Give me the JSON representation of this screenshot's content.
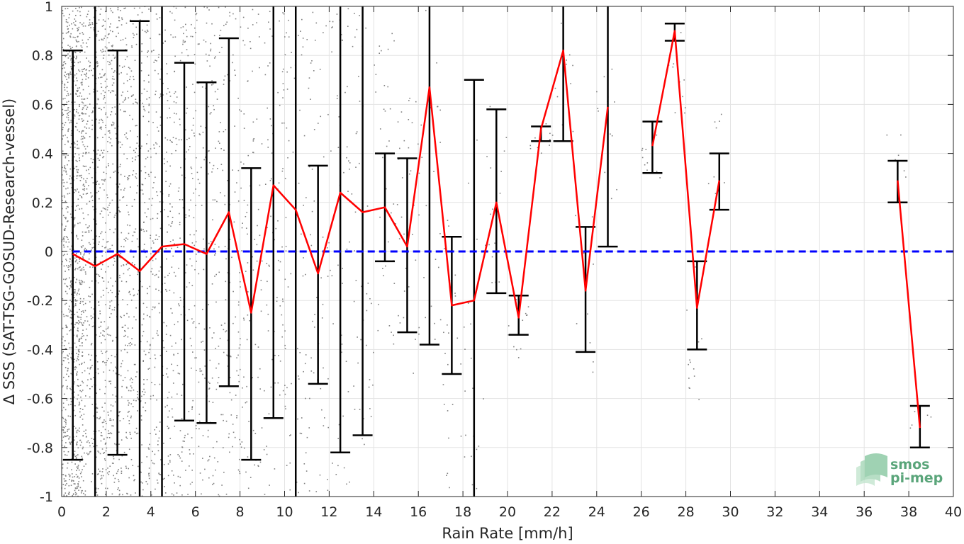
{
  "chart_data": {
    "type": "line",
    "xlabel": "Rain Rate [mm/h]",
    "ylabel": "Δ SSS (SAT-TSG-GOSUD-Research-vessel)",
    "xlim": [
      0,
      40
    ],
    "ylim": [
      -1,
      1
    ],
    "xticks": [
      0,
      2,
      4,
      6,
      8,
      10,
      12,
      14,
      16,
      18,
      20,
      22,
      24,
      26,
      28,
      30,
      32,
      34,
      36,
      38,
      40
    ],
    "yticks": [
      -1,
      -0.8,
      -0.6,
      -0.4,
      -0.2,
      0,
      0.2,
      0.4,
      0.6,
      0.8,
      1
    ],
    "ytick_labels": [
      "-1",
      "-0.8",
      "-0.6",
      "-0.4",
      "-0.2",
      "0",
      "0.2",
      "0.4",
      "0.6",
      "0.8",
      "1"
    ],
    "grid": true,
    "series": [
      {
        "kind": "mean-line",
        "color": "#ff0000",
        "segments": [
          [
            [
              0.5,
              -0.01
            ],
            [
              1.5,
              -0.06
            ],
            [
              2.5,
              -0.01
            ],
            [
              3.5,
              -0.08
            ],
            [
              4.5,
              0.02
            ],
            [
              5.5,
              0.03
            ],
            [
              6.5,
              -0.01
            ],
            [
              7.5,
              0.16
            ],
            [
              8.5,
              -0.25
            ],
            [
              9.5,
              0.27
            ],
            [
              10.5,
              0.17
            ],
            [
              11.5,
              -0.09
            ],
            [
              12.5,
              0.24
            ],
            [
              13.5,
              0.16
            ],
            [
              14.5,
              0.18
            ],
            [
              15.5,
              0.02
            ],
            [
              16.5,
              0.67
            ],
            [
              17.5,
              -0.22
            ],
            [
              18.5,
              -0.2
            ],
            [
              19.5,
              0.2
            ],
            [
              20.5,
              -0.27
            ],
            [
              21.5,
              0.5
            ],
            [
              22.5,
              0.82
            ],
            [
              23.5,
              -0.16
            ],
            [
              24.5,
              0.59
            ]
          ],
          [
            [
              26.5,
              0.43
            ],
            [
              27.5,
              0.9
            ],
            [
              28.5,
              -0.23
            ],
            [
              29.5,
              0.29
            ]
          ],
          [
            [
              37.5,
              0.29
            ],
            [
              38.5,
              -0.72
            ]
          ]
        ]
      },
      {
        "kind": "reference-line",
        "color": "#0000ff",
        "y": 0
      }
    ],
    "error_bars": [
      {
        "x": 0.5,
        "low": -0.85,
        "high": 0.82,
        "capped": true
      },
      {
        "x": 1.5,
        "low": -1.0,
        "high": 1.0,
        "capped": false
      },
      {
        "x": 2.5,
        "low": -0.83,
        "high": 0.82,
        "capped": true
      },
      {
        "x": 3.5,
        "low": -1.0,
        "high": 0.94,
        "capped": true
      },
      {
        "x": 4.5,
        "low": -1.0,
        "high": 1.0,
        "capped": false
      },
      {
        "x": 5.5,
        "low": -0.69,
        "high": 0.77,
        "capped": true
      },
      {
        "x": 6.5,
        "low": -0.7,
        "high": 0.69,
        "capped": true
      },
      {
        "x": 7.5,
        "low": -0.55,
        "high": 0.87,
        "capped": true
      },
      {
        "x": 8.5,
        "low": -0.85,
        "high": 0.34,
        "capped": true
      },
      {
        "x": 9.5,
        "low": -0.68,
        "high": 1.0,
        "capped": true
      },
      {
        "x": 10.5,
        "low": -1.0,
        "high": 1.0,
        "capped": false
      },
      {
        "x": 11.5,
        "low": -0.54,
        "high": 0.35,
        "capped": true
      },
      {
        "x": 12.5,
        "low": -0.82,
        "high": 1.0,
        "capped": true
      },
      {
        "x": 13.5,
        "low": -0.75,
        "high": 1.0,
        "capped": true
      },
      {
        "x": 14.5,
        "low": -0.04,
        "high": 0.4,
        "capped": true
      },
      {
        "x": 15.5,
        "low": -0.33,
        "high": 0.38,
        "capped": true
      },
      {
        "x": 16.5,
        "low": -0.38,
        "high": 1.0,
        "capped": true
      },
      {
        "x": 17.5,
        "low": -0.5,
        "high": 0.06,
        "capped": true
      },
      {
        "x": 18.5,
        "low": -1.0,
        "high": 0.7,
        "capped": true
      },
      {
        "x": 19.5,
        "low": -0.17,
        "high": 0.58,
        "capped": true
      },
      {
        "x": 20.5,
        "low": -0.34,
        "high": -0.18,
        "capped": true
      },
      {
        "x": 21.5,
        "low": 0.45,
        "high": 0.51,
        "capped": true
      },
      {
        "x": 22.5,
        "low": 0.45,
        "high": 1.0,
        "capped": true
      },
      {
        "x": 23.5,
        "low": -0.41,
        "high": 0.1,
        "capped": true
      },
      {
        "x": 24.5,
        "low": 0.02,
        "high": 1.0,
        "capped": true
      },
      {
        "x": 26.5,
        "low": 0.32,
        "high": 0.53,
        "capped": true
      },
      {
        "x": 27.5,
        "low": 0.86,
        "high": 0.93,
        "capped": true
      },
      {
        "x": 28.5,
        "low": -0.4,
        "high": -0.04,
        "capped": true
      },
      {
        "x": 29.5,
        "low": 0.17,
        "high": 0.4,
        "capped": true
      },
      {
        "x": 37.5,
        "low": 0.2,
        "high": 0.37,
        "capped": true
      },
      {
        "x": 38.5,
        "low": -0.8,
        "high": -0.63,
        "capped": true
      }
    ],
    "scatter": {
      "color": "#808080",
      "clusters": [
        {
          "x0": 0.0,
          "x1": 1.0,
          "y0": -1.0,
          "y1": 1.0,
          "n": 900
        },
        {
          "x0": 1.0,
          "x1": 2.0,
          "y0": -1.0,
          "y1": 1.0,
          "n": 500
        },
        {
          "x0": 2.0,
          "x1": 3.0,
          "y0": -1.0,
          "y1": 1.0,
          "n": 380
        },
        {
          "x0": 3.0,
          "x1": 4.0,
          "y0": -1.0,
          "y1": 1.0,
          "n": 300
        },
        {
          "x0": 4.0,
          "x1": 5.0,
          "y0": -1.0,
          "y1": 1.0,
          "n": 230
        },
        {
          "x0": 5.0,
          "x1": 6.0,
          "y0": -1.0,
          "y1": 1.0,
          "n": 180
        },
        {
          "x0": 6.0,
          "x1": 7.0,
          "y0": -1.0,
          "y1": 1.0,
          "n": 150
        },
        {
          "x0": 7.0,
          "x1": 8.0,
          "y0": -1.0,
          "y1": 1.0,
          "n": 120
        },
        {
          "x0": 8.0,
          "x1": 9.0,
          "y0": -1.0,
          "y1": 1.0,
          "n": 100
        },
        {
          "x0": 9.0,
          "x1": 10.0,
          "y0": -1.0,
          "y1": 1.0,
          "n": 80
        },
        {
          "x0": 10.0,
          "x1": 11.0,
          "y0": -1.0,
          "y1": 1.0,
          "n": 70
        },
        {
          "x0": 11.0,
          "x1": 12.0,
          "y0": -1.0,
          "y1": 1.0,
          "n": 55
        },
        {
          "x0": 12.0,
          "x1": 13.0,
          "y0": -1.0,
          "y1": 1.0,
          "n": 50
        },
        {
          "x0": 13.0,
          "x1": 14.0,
          "y0": -0.8,
          "y1": 1.0,
          "n": 45
        },
        {
          "x0": 14.0,
          "x1": 15.0,
          "y0": -0.4,
          "y1": 0.9,
          "n": 35
        },
        {
          "x0": 15.0,
          "x1": 16.0,
          "y0": -0.6,
          "y1": 0.8,
          "n": 30
        },
        {
          "x0": 16.0,
          "x1": 17.0,
          "y0": -0.5,
          "y1": 1.0,
          "n": 25
        },
        {
          "x0": 17.0,
          "x1": 18.0,
          "y0": -1.0,
          "y1": 0.2,
          "n": 25
        },
        {
          "x0": 18.0,
          "x1": 19.0,
          "y0": -1.0,
          "y1": 0.7,
          "n": 20
        },
        {
          "x0": 19.0,
          "x1": 20.0,
          "y0": -0.2,
          "y1": 0.6,
          "n": 18
        },
        {
          "x0": 20.0,
          "x1": 21.0,
          "y0": -0.45,
          "y1": -0.15,
          "n": 12
        },
        {
          "x0": 21.0,
          "x1": 22.0,
          "y0": 0.4,
          "y1": 0.55,
          "n": 10
        },
        {
          "x0": 22.0,
          "x1": 23.0,
          "y0": 0.4,
          "y1": 1.0,
          "n": 12
        },
        {
          "x0": 23.0,
          "x1": 24.0,
          "y0": -0.5,
          "y1": 0.2,
          "n": 12
        },
        {
          "x0": 24.0,
          "x1": 25.0,
          "y0": 0.2,
          "y1": 0.75,
          "n": 14
        },
        {
          "x0": 26.0,
          "x1": 27.0,
          "y0": 0.28,
          "y1": 0.55,
          "n": 10
        },
        {
          "x0": 27.0,
          "x1": 28.0,
          "y0": 0.55,
          "y1": 0.93,
          "n": 10
        },
        {
          "x0": 28.0,
          "x1": 29.0,
          "y0": -0.65,
          "y1": -0.05,
          "n": 14
        },
        {
          "x0": 29.0,
          "x1": 30.0,
          "y0": 0.2,
          "y1": 0.6,
          "n": 8
        },
        {
          "x0": 37.0,
          "x1": 38.0,
          "y0": 0.3,
          "y1": 0.52,
          "n": 6
        },
        {
          "x0": 38.0,
          "x1": 39.0,
          "y0": -0.75,
          "y1": -0.6,
          "n": 5
        }
      ]
    }
  },
  "logo": {
    "line1": "smos",
    "line2": "pi-mep"
  }
}
